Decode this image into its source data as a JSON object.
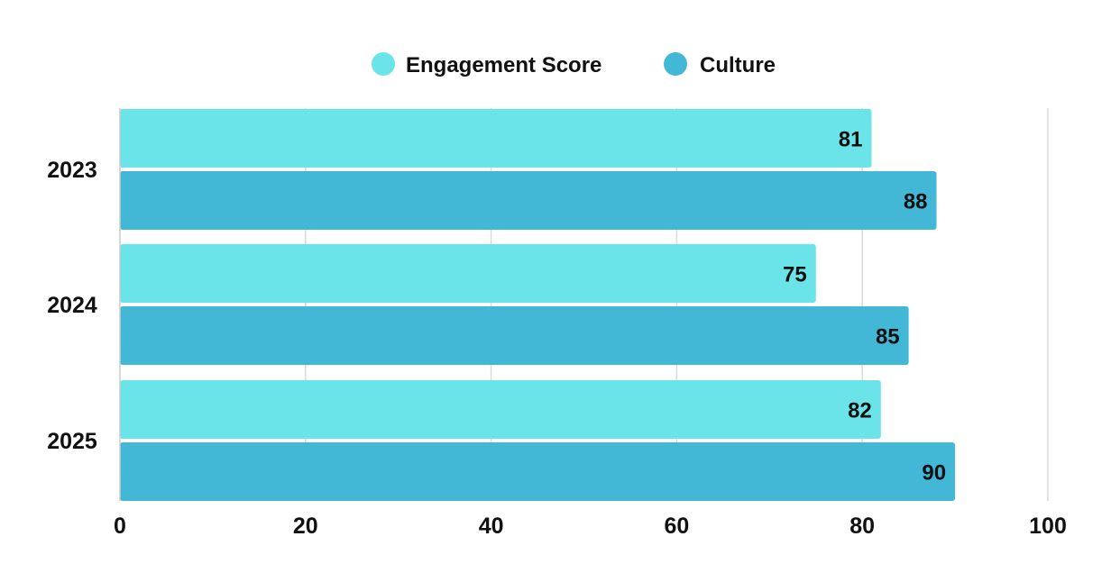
{
  "chart_data": {
    "type": "bar",
    "orientation": "horizontal",
    "categories": [
      "2023",
      "2024",
      "2025"
    ],
    "series": [
      {
        "name": "Engagement Score",
        "values": [
          81,
          75,
          82
        ],
        "color": "#6ae4e8"
      },
      {
        "name": "Culture",
        "values": [
          88,
          85,
          90
        ],
        "color": "#43b7d6"
      }
    ],
    "xlim": [
      0,
      100
    ],
    "xticks": [
      "0",
      "20",
      "40",
      "60",
      "80",
      "100"
    ],
    "grid": true,
    "legend": "top-center",
    "data_labels": true
  }
}
